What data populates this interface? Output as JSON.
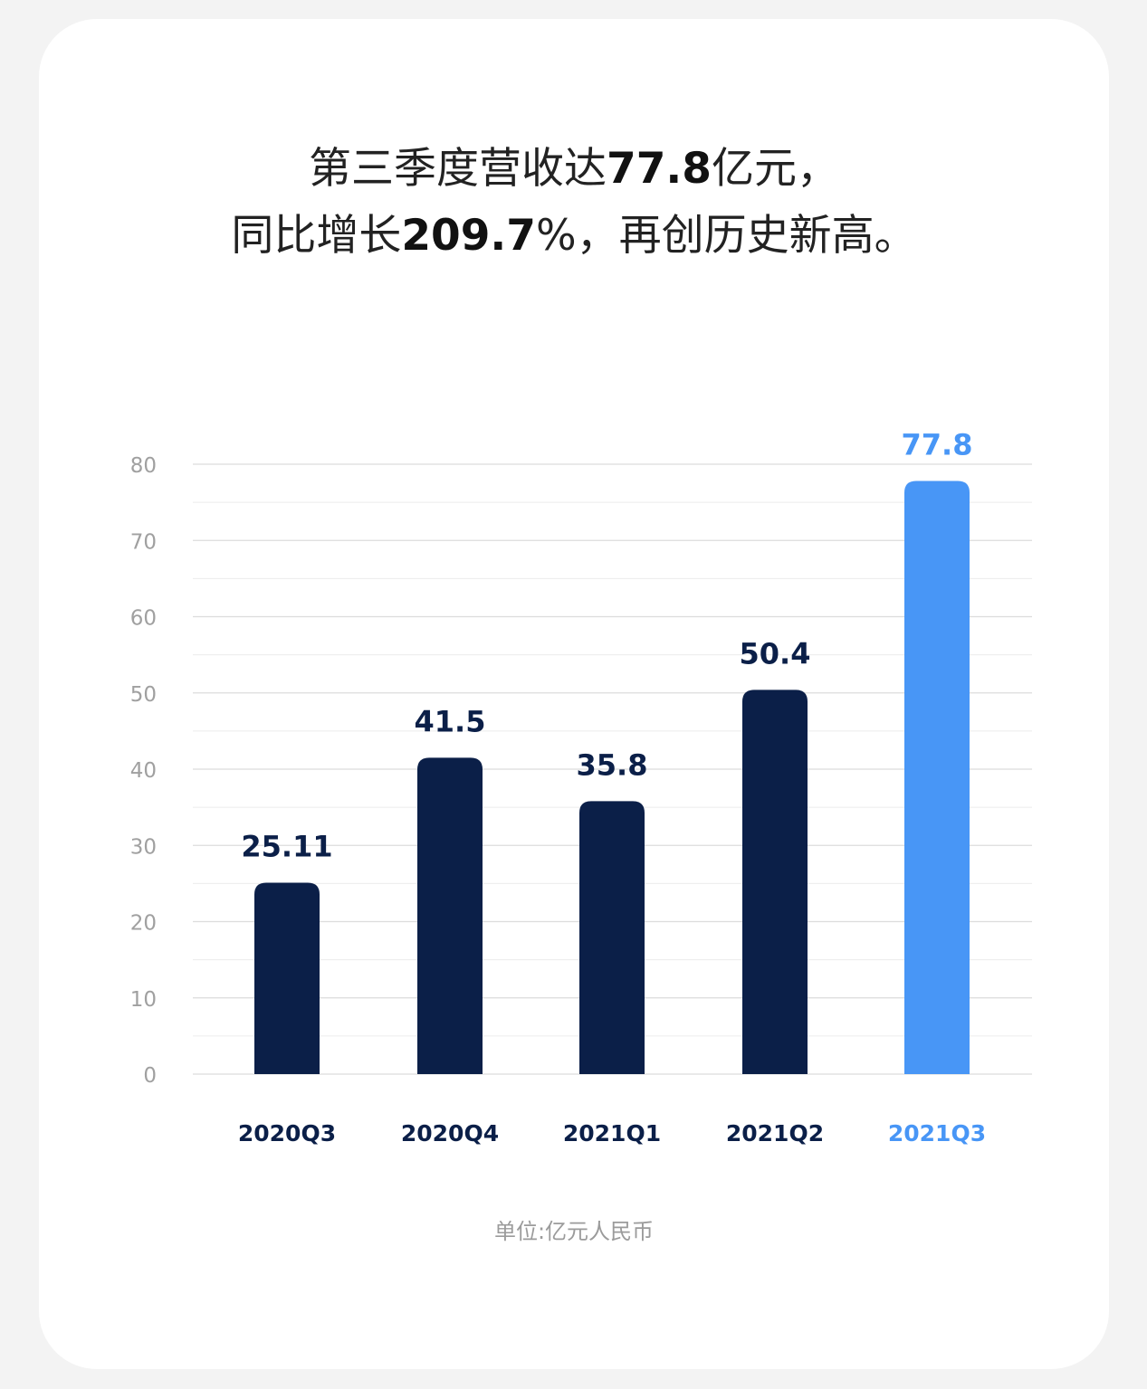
{
  "headline": {
    "line1_prefix": "第三季度营收达",
    "line1_value": "77.8",
    "line1_suffix": "亿元，",
    "line2_prefix": "同比增长",
    "line2_value": "209.7",
    "line2_suffix": "%，再创历史新高。"
  },
  "unit_note": "单位:亿元人民币",
  "colors": {
    "dark_bar": "#0b1f48",
    "highlight_bar": "#4896f6",
    "gridline": "#dcdcdc",
    "tick_text": "#a0a0a0"
  },
  "chart_data": {
    "type": "bar",
    "categories": [
      "2020Q3",
      "2020Q4",
      "2021Q1",
      "2021Q2",
      "2021Q3"
    ],
    "values": [
      25.11,
      41.5,
      35.8,
      50.4,
      77.8
    ],
    "value_labels": [
      "25.11",
      "41.5",
      "35.8",
      "50.4",
      "77.8"
    ],
    "highlight_index": 4,
    "yticks": [
      0,
      10,
      20,
      30,
      40,
      50,
      60,
      70,
      80
    ],
    "ylim": [
      0,
      80
    ],
    "grid": true,
    "minor_grid": true,
    "legend": "none",
    "title": "",
    "xlabel": "",
    "ylabel": ""
  }
}
